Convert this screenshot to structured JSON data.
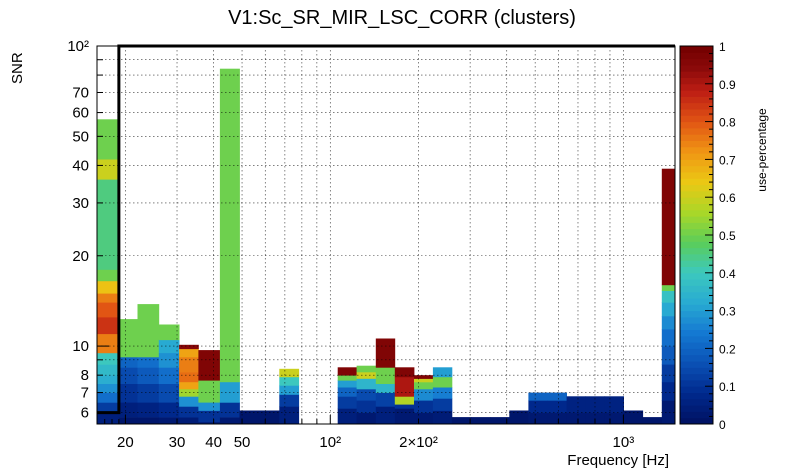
{
  "chart_data": {
    "type": "heatmap",
    "title": "V1:Sc_SR_MIR_LSC_CORR (clusters)",
    "xlabel": "Frequency [Hz]",
    "ylabel": "SNR",
    "zlabel": "use-percentage",
    "x_scale": "log",
    "y_scale": "log",
    "xlim": [
      16,
      1500
    ],
    "ylim": [
      5.5,
      100
    ],
    "zlim": [
      0,
      1
    ],
    "x_ticks": [
      {
        "value": 20,
        "label": "20"
      },
      {
        "value": 30,
        "label": "30"
      },
      {
        "value": 40,
        "label": "40"
      },
      {
        "value": 50,
        "label": "50"
      },
      {
        "value": 100,
        "label": "10²"
      },
      {
        "value": 200,
        "label": "2×10²"
      },
      {
        "value": 1000,
        "label": "10³"
      }
    ],
    "y_ticks": [
      {
        "value": 6,
        "label": "6"
      },
      {
        "value": 7,
        "label": "7"
      },
      {
        "value": 8,
        "label": "8"
      },
      {
        "value": 10,
        "label": "10"
      },
      {
        "value": 20,
        "label": "20"
      },
      {
        "value": 30,
        "label": "30"
      },
      {
        "value": 40,
        "label": "40"
      },
      {
        "value": 50,
        "label": "50"
      },
      {
        "value": 60,
        "label": "60"
      },
      {
        "value": 70,
        "label": "70"
      },
      {
        "value": 100,
        "label": "10²"
      }
    ],
    "z_ticks": [
      {
        "value": 0,
        "label": "0"
      },
      {
        "value": 0.1,
        "label": "0.1"
      },
      {
        "value": 0.2,
        "label": "0.2"
      },
      {
        "value": 0.3,
        "label": "0.3"
      },
      {
        "value": 0.4,
        "label": "0.4"
      },
      {
        "value": 0.5,
        "label": "0.5"
      },
      {
        "value": 0.6,
        "label": "0.6"
      },
      {
        "value": 0.7,
        "label": "0.7"
      },
      {
        "value": 0.8,
        "label": "0.8"
      },
      {
        "value": 0.9,
        "label": "0.9"
      },
      {
        "value": 1,
        "label": "1"
      }
    ],
    "snr_threshold": 6,
    "freq_threshold": 19,
    "grid": true,
    "columns": [
      {
        "f": [
          16,
          19
        ],
        "cells": [
          [
            0.5,
            0.02
          ],
          [
            5.5,
            0.05
          ],
          [
            6,
            0.12
          ],
          [
            6.5,
            0.22
          ],
          [
            7,
            0.28
          ],
          [
            7.5,
            0.33
          ],
          [
            8,
            0.36
          ],
          [
            8.7,
            0.4
          ],
          [
            9.5,
            0.75
          ],
          [
            11,
            0.85
          ],
          [
            12.5,
            0.8
          ],
          [
            14,
            0.75
          ],
          [
            15,
            0.65
          ],
          [
            16.5,
            0.5
          ],
          [
            18,
            0.45
          ],
          [
            36,
            0.6
          ],
          [
            42,
            0.5
          ],
          [
            57,
            0.5
          ]
        ]
      },
      {
        "f": [
          19,
          22
        ],
        "cells": [
          [
            0.5,
            0.02
          ],
          [
            5.8,
            0.05
          ],
          [
            6.5,
            0.1
          ],
          [
            7.5,
            0.15
          ],
          [
            8.5,
            0.2
          ],
          [
            9.2,
            0.5
          ],
          [
            12.3,
            0.5
          ]
        ]
      },
      {
        "f": [
          22,
          26
        ],
        "cells": [
          [
            0.5,
            0.02
          ],
          [
            5.8,
            0.06
          ],
          [
            6.5,
            0.12
          ],
          [
            7.5,
            0.18
          ],
          [
            8.5,
            0.22
          ],
          [
            9.2,
            0.5
          ],
          [
            13.8,
            0.5
          ]
        ]
      },
      {
        "f": [
          26,
          30.5
        ],
        "cells": [
          [
            0.5,
            0.03
          ],
          [
            5.8,
            0.08
          ],
          [
            6.5,
            0.15
          ],
          [
            7.5,
            0.22
          ],
          [
            8.5,
            0.28
          ],
          [
            9.5,
            0.32
          ],
          [
            10.5,
            0.5
          ],
          [
            11.8,
            0.5
          ]
        ]
      },
      {
        "f": [
          30.5,
          35.5
        ],
        "cells": [
          [
            0.5,
            0.04
          ],
          [
            5.8,
            0.1
          ],
          [
            6.3,
            0.28
          ],
          [
            6.8,
            0.55
          ],
          [
            7.2,
            0.7
          ],
          [
            7.6,
            0.77
          ],
          [
            8.2,
            0.75
          ],
          [
            9.2,
            0.7
          ],
          [
            9.8,
            0.95
          ],
          [
            10.1,
            0.95
          ]
        ]
      },
      {
        "f": [
          35.5,
          42
        ],
        "cells": [
          [
            0.5,
            0.05
          ],
          [
            5.6,
            0.1
          ],
          [
            6.1,
            0.28
          ],
          [
            6.5,
            0.5
          ],
          [
            7.7,
            0.97
          ],
          [
            9.7,
            0.97
          ]
        ]
      },
      {
        "f": [
          42,
          49
        ],
        "cells": [
          [
            0.5,
            0.03
          ],
          [
            5.8,
            0.1
          ],
          [
            6.5,
            0.3
          ],
          [
            7.6,
            0.5
          ],
          [
            84,
            0.5
          ]
        ]
      },
      {
        "f": [
          49,
          57
        ],
        "cells": [
          [
            0.5,
            0.02
          ],
          [
            6.1,
            0.02
          ]
        ]
      },
      {
        "f": [
          57,
          67
        ],
        "cells": [
          [
            0.5,
            0.02
          ],
          [
            6.1,
            0.02
          ]
        ]
      },
      {
        "f": [
          67,
          78
        ],
        "cells": [
          [
            0.5,
            0.05
          ],
          [
            6.3,
            0.12
          ],
          [
            6.9,
            0.3
          ],
          [
            7.4,
            0.4
          ],
          [
            7.9,
            0.6
          ],
          [
            8.4,
            0.6
          ]
        ]
      },
      {
        "f": [
          78,
          91
        ],
        "cells": [
          [
            0.5,
            0.02
          ],
          [
            5.5,
            0.02
          ]
        ]
      },
      {
        "f": [
          91,
          106
        ],
        "cells": [
          [
            0.5,
            0.02
          ],
          [
            5.5,
            0.02
          ]
        ]
      },
      {
        "f": [
          106,
          123
        ],
        "cells": [
          [
            0.5,
            0.05
          ],
          [
            6.2,
            0.12
          ],
          [
            6.8,
            0.2
          ],
          [
            7.3,
            0.3
          ],
          [
            7.7,
            0.5
          ],
          [
            8,
            0.97
          ],
          [
            8.5,
            0.97
          ]
        ]
      },
      {
        "f": [
          123,
          143
        ],
        "cells": [
          [
            0.5,
            0.03
          ],
          [
            6,
            0.1
          ],
          [
            6.6,
            0.15
          ],
          [
            7.2,
            0.35
          ],
          [
            7.8,
            0.6
          ],
          [
            8.2,
            0.5
          ],
          [
            8.6,
            0.5
          ]
        ]
      },
      {
        "f": [
          143,
          166
        ],
        "cells": [
          [
            0.5,
            0.05
          ],
          [
            6.3,
            0.13
          ],
          [
            7,
            0.35
          ],
          [
            7.5,
            0.5
          ],
          [
            8.5,
            0.97
          ],
          [
            10.6,
            0.97
          ]
        ]
      },
      {
        "f": [
          166,
          193
        ],
        "cells": [
          [
            0.5,
            0.03
          ],
          [
            6.2,
            0.1
          ],
          [
            6.4,
            0.57
          ],
          [
            6.8,
            0.9
          ],
          [
            7.9,
            0.97
          ],
          [
            8.5,
            0.97
          ]
        ]
      },
      {
        "f": [
          193,
          224
        ],
        "cells": [
          [
            0.5,
            0.03
          ],
          [
            6,
            0.1
          ],
          [
            6.6,
            0.27
          ],
          [
            7.2,
            0.5
          ],
          [
            7.6,
            0.6
          ],
          [
            7.8,
            0.97
          ],
          [
            8,
            0.97
          ]
        ]
      },
      {
        "f": [
          224,
          260
        ],
        "cells": [
          [
            0.5,
            0.04
          ],
          [
            6.1,
            0.12
          ],
          [
            6.7,
            0.25
          ],
          [
            7.3,
            0.5
          ],
          [
            7.9,
            0.3
          ],
          [
            8.5,
            0.3
          ]
        ]
      },
      {
        "f": [
          260,
          302
        ],
        "cells": [
          [
            0.5,
            0.02
          ],
          [
            5.8,
            0.02
          ]
        ]
      },
      {
        "f": [
          302,
          351
        ],
        "cells": [
          [
            0.5,
            0.02
          ],
          [
            5.8,
            0.02
          ]
        ]
      },
      {
        "f": [
          351,
          408
        ],
        "cells": [
          [
            0.5,
            0.02
          ],
          [
            5.8,
            0.02
          ]
        ]
      },
      {
        "f": [
          408,
          474
        ],
        "cells": [
          [
            0.5,
            0.02
          ],
          [
            6.1,
            0.02
          ]
        ]
      },
      {
        "f": [
          474,
          550
        ],
        "cells": [
          [
            0.5,
            0.03
          ],
          [
            6,
            0.08
          ],
          [
            6.6,
            0.2
          ],
          [
            7,
            0.2
          ]
        ]
      },
      {
        "f": [
          550,
          640
        ],
        "cells": [
          [
            0.5,
            0.03
          ],
          [
            6,
            0.08
          ],
          [
            6.6,
            0.2
          ],
          [
            7,
            0.2
          ]
        ]
      },
      {
        "f": [
          640,
          743
        ],
        "cells": [
          [
            0.5,
            0.03
          ],
          [
            6,
            0.06
          ],
          [
            6.8,
            0.06
          ]
        ]
      },
      {
        "f": [
          743,
          863
        ],
        "cells": [
          [
            0.5,
            0.03
          ],
          [
            6,
            0.06
          ],
          [
            6.8,
            0.06
          ]
        ]
      },
      {
        "f": [
          863,
          1002
        ],
        "cells": [
          [
            0.5,
            0.03
          ],
          [
            6,
            0.06
          ],
          [
            6.8,
            0.06
          ]
        ]
      },
      {
        "f": [
          1002,
          1164
        ],
        "cells": [
          [
            0.5,
            0.02
          ],
          [
            6.1,
            0.02
          ]
        ]
      },
      {
        "f": [
          1164,
          1352
        ],
        "cells": [
          [
            0.5,
            0.02
          ],
          [
            5.8,
            0.02
          ]
        ]
      },
      {
        "f": [
          1352,
          1500
        ],
        "cells": [
          [
            0.5,
            0.03
          ],
          [
            6.6,
            0.08
          ],
          [
            7.6,
            0.12
          ],
          [
            8.7,
            0.18
          ],
          [
            10,
            0.22
          ],
          [
            11.4,
            0.27
          ],
          [
            12.6,
            0.32
          ],
          [
            14,
            0.38
          ],
          [
            15.3,
            0.5
          ],
          [
            16,
            0.97
          ],
          [
            39,
            0.97
          ]
        ]
      }
    ]
  }
}
